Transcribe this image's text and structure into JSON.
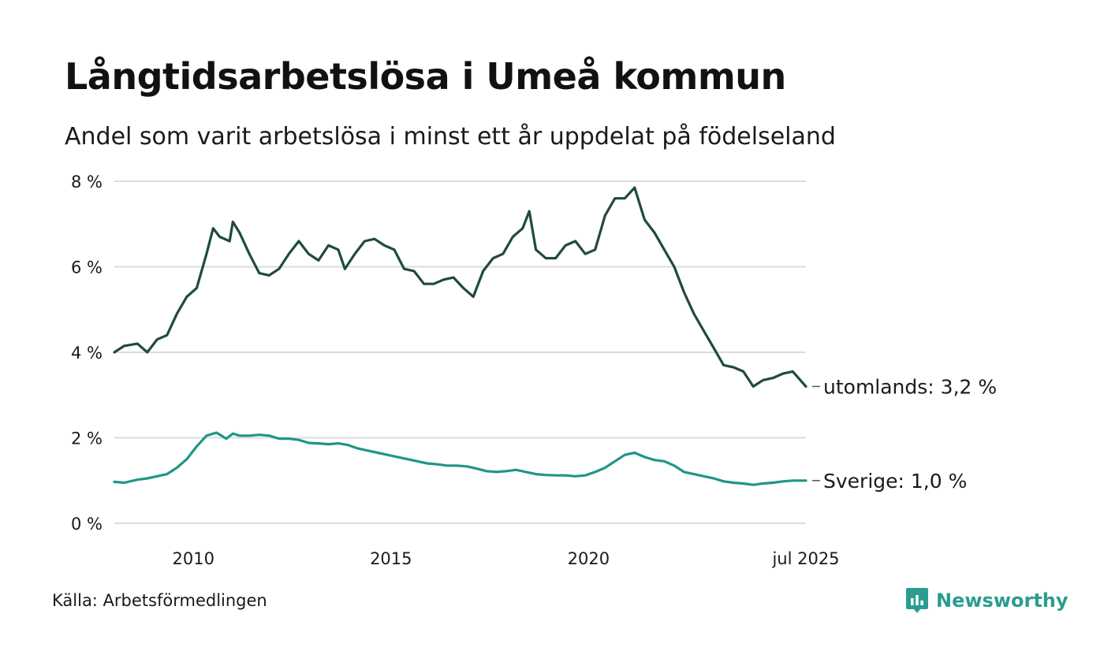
{
  "title": "Långtidsarbetslösa i Umeå kommun",
  "subtitle": "Andel som varit arbetslösa i minst ett år uppdelat på födelseland",
  "source": "Källa: Arbetsförmedlingen",
  "brand": {
    "name": "Newsworthy",
    "icon": "newsworthy-chart-logo-icon",
    "color": "#2a9d8f"
  },
  "chart_data": {
    "type": "line",
    "title": "Långtidsarbetslösa i Umeå kommun",
    "subtitle": "Andel som varit arbetslösa i minst ett år uppdelat på födelseland",
    "xlabel": "",
    "ylabel": "",
    "ylim": [
      0,
      8
    ],
    "xlim": [
      "2008-01",
      "2025-07"
    ],
    "y_ticks": [
      0,
      2,
      4,
      6,
      8
    ],
    "y_tick_labels": [
      "0 %",
      "2 %",
      "4 %",
      "6 %",
      "8 %"
    ],
    "x_ticks": [
      "2010-01",
      "2015-01",
      "2020-01",
      "2025-07"
    ],
    "x_tick_labels": [
      "2010",
      "2015",
      "2020",
      "jul 2025"
    ],
    "grid": "horizontal",
    "legend": "direct labels at right end of lines",
    "series": [
      {
        "name": "utomlands",
        "end_label": "utomlands: 3,2 %",
        "color": "#1f4a42",
        "points": [
          [
            "2008-01",
            4.0
          ],
          [
            "2008-04",
            4.15
          ],
          [
            "2008-08",
            4.2
          ],
          [
            "2008-11",
            4.0
          ],
          [
            "2009-02",
            4.3
          ],
          [
            "2009-05",
            4.4
          ],
          [
            "2009-08",
            4.9
          ],
          [
            "2009-11",
            5.3
          ],
          [
            "2010-02",
            5.5
          ],
          [
            "2010-05",
            6.3
          ],
          [
            "2010-07",
            6.9
          ],
          [
            "2010-09",
            6.7
          ],
          [
            "2010-12",
            6.6
          ],
          [
            "2011-01",
            7.05
          ],
          [
            "2011-03",
            6.8
          ],
          [
            "2011-06",
            6.3
          ],
          [
            "2011-09",
            5.85
          ],
          [
            "2011-12",
            5.8
          ],
          [
            "2012-03",
            5.95
          ],
          [
            "2012-06",
            6.3
          ],
          [
            "2012-09",
            6.6
          ],
          [
            "2012-12",
            6.3
          ],
          [
            "2013-03",
            6.15
          ],
          [
            "2013-06",
            6.5
          ],
          [
            "2013-09",
            6.4
          ],
          [
            "2013-11",
            5.95
          ],
          [
            "2014-02",
            6.3
          ],
          [
            "2014-05",
            6.6
          ],
          [
            "2014-08",
            6.65
          ],
          [
            "2014-11",
            6.5
          ],
          [
            "2015-02",
            6.4
          ],
          [
            "2015-05",
            5.95
          ],
          [
            "2015-08",
            5.9
          ],
          [
            "2015-11",
            5.6
          ],
          [
            "2016-02",
            5.6
          ],
          [
            "2016-05",
            5.7
          ],
          [
            "2016-08",
            5.75
          ],
          [
            "2016-11",
            5.5
          ],
          [
            "2017-02",
            5.3
          ],
          [
            "2017-05",
            5.9
          ],
          [
            "2017-08",
            6.2
          ],
          [
            "2017-11",
            6.3
          ],
          [
            "2018-02",
            6.7
          ],
          [
            "2018-05",
            6.9
          ],
          [
            "2018-07",
            7.3
          ],
          [
            "2018-09",
            6.4
          ],
          [
            "2018-12",
            6.2
          ],
          [
            "2019-03",
            6.2
          ],
          [
            "2019-06",
            6.5
          ],
          [
            "2019-09",
            6.6
          ],
          [
            "2019-12",
            6.3
          ],
          [
            "2020-03",
            6.4
          ],
          [
            "2020-06",
            7.2
          ],
          [
            "2020-09",
            7.6
          ],
          [
            "2020-12",
            7.6
          ],
          [
            "2021-03",
            7.85
          ],
          [
            "2021-06",
            7.1
          ],
          [
            "2021-09",
            6.8
          ],
          [
            "2021-12",
            6.4
          ],
          [
            "2022-03",
            6.0
          ],
          [
            "2022-06",
            5.4
          ],
          [
            "2022-09",
            4.9
          ],
          [
            "2022-12",
            4.5
          ],
          [
            "2023-03",
            4.1
          ],
          [
            "2023-06",
            3.7
          ],
          [
            "2023-09",
            3.65
          ],
          [
            "2023-12",
            3.55
          ],
          [
            "2024-03",
            3.2
          ],
          [
            "2024-06",
            3.35
          ],
          [
            "2024-09",
            3.4
          ],
          [
            "2024-12",
            3.5
          ],
          [
            "2025-03",
            3.55
          ],
          [
            "2025-07",
            3.2
          ]
        ]
      },
      {
        "name": "Sverige",
        "end_label": "Sverige: 1,0 %",
        "color": "#1f9688",
        "points": [
          [
            "2008-01",
            0.97
          ],
          [
            "2008-04",
            0.95
          ],
          [
            "2008-08",
            1.02
          ],
          [
            "2008-11",
            1.05
          ],
          [
            "2009-02",
            1.1
          ],
          [
            "2009-05",
            1.15
          ],
          [
            "2009-08",
            1.3
          ],
          [
            "2009-11",
            1.5
          ],
          [
            "2010-02",
            1.8
          ],
          [
            "2010-05",
            2.05
          ],
          [
            "2010-08",
            2.12
          ],
          [
            "2010-11",
            1.98
          ],
          [
            "2011-01",
            2.1
          ],
          [
            "2011-03",
            2.05
          ],
          [
            "2011-06",
            2.05
          ],
          [
            "2011-09",
            2.07
          ],
          [
            "2011-12",
            2.05
          ],
          [
            "2012-03",
            1.98
          ],
          [
            "2012-06",
            1.98
          ],
          [
            "2012-09",
            1.95
          ],
          [
            "2012-12",
            1.88
          ],
          [
            "2013-03",
            1.87
          ],
          [
            "2013-06",
            1.85
          ],
          [
            "2013-09",
            1.87
          ],
          [
            "2013-12",
            1.83
          ],
          [
            "2014-03",
            1.75
          ],
          [
            "2014-06",
            1.7
          ],
          [
            "2014-09",
            1.65
          ],
          [
            "2014-12",
            1.6
          ],
          [
            "2015-03",
            1.55
          ],
          [
            "2015-06",
            1.5
          ],
          [
            "2015-09",
            1.45
          ],
          [
            "2015-12",
            1.4
          ],
          [
            "2016-03",
            1.38
          ],
          [
            "2016-06",
            1.35
          ],
          [
            "2016-09",
            1.35
          ],
          [
            "2016-12",
            1.33
          ],
          [
            "2017-03",
            1.28
          ],
          [
            "2017-06",
            1.22
          ],
          [
            "2017-09",
            1.2
          ],
          [
            "2017-12",
            1.22
          ],
          [
            "2018-03",
            1.25
          ],
          [
            "2018-06",
            1.2
          ],
          [
            "2018-09",
            1.15
          ],
          [
            "2018-12",
            1.13
          ],
          [
            "2019-03",
            1.12
          ],
          [
            "2019-06",
            1.12
          ],
          [
            "2019-09",
            1.1
          ],
          [
            "2019-12",
            1.12
          ],
          [
            "2020-03",
            1.2
          ],
          [
            "2020-06",
            1.3
          ],
          [
            "2020-09",
            1.45
          ],
          [
            "2020-12",
            1.6
          ],
          [
            "2021-03",
            1.65
          ],
          [
            "2021-06",
            1.55
          ],
          [
            "2021-09",
            1.48
          ],
          [
            "2021-12",
            1.45
          ],
          [
            "2022-03",
            1.35
          ],
          [
            "2022-06",
            1.2
          ],
          [
            "2022-09",
            1.15
          ],
          [
            "2022-12",
            1.1
          ],
          [
            "2023-03",
            1.05
          ],
          [
            "2023-06",
            0.98
          ],
          [
            "2023-09",
            0.95
          ],
          [
            "2023-12",
            0.93
          ],
          [
            "2024-03",
            0.9
          ],
          [
            "2024-06",
            0.93
          ],
          [
            "2024-09",
            0.95
          ],
          [
            "2024-12",
            0.98
          ],
          [
            "2025-03",
            1.0
          ],
          [
            "2025-07",
            1.0
          ]
        ]
      }
    ]
  }
}
